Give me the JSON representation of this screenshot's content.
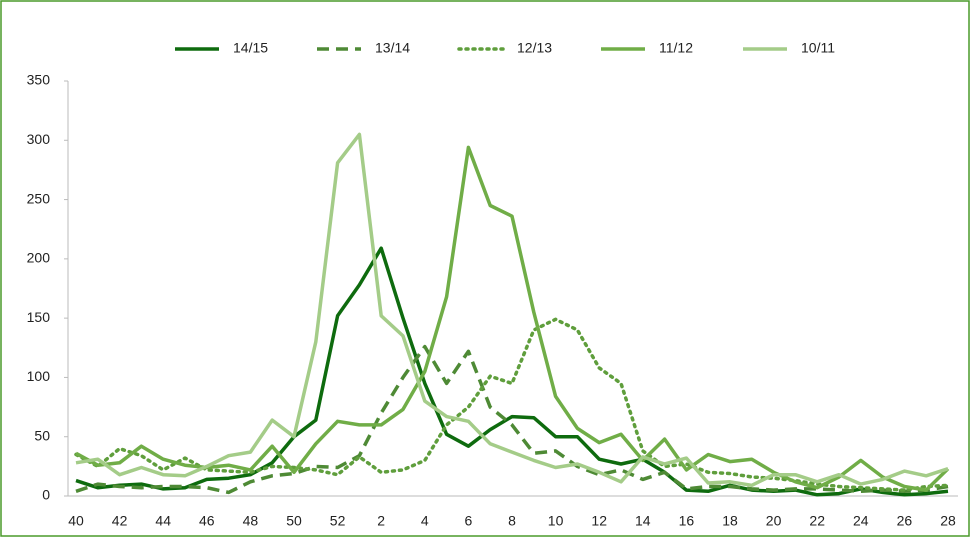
{
  "chart_data": {
    "type": "line",
    "categories": [
      "40",
      null,
      "42",
      null,
      "44",
      null,
      "46",
      null,
      "48",
      null,
      "50",
      null,
      "52",
      null,
      "2",
      null,
      "4",
      null,
      "6",
      null,
      "8",
      null,
      "10",
      null,
      "12",
      null,
      "14",
      null,
      "16",
      null,
      "18",
      null,
      "20",
      null,
      "22",
      null,
      "24",
      null,
      "26",
      null,
      "28"
    ],
    "series": [
      {
        "name": "14/15",
        "color": "#0e6b0e",
        "dash": "solid",
        "values": [
          13,
          7,
          9,
          10,
          6,
          7,
          14,
          15,
          18,
          28,
          50,
          64,
          152,
          178,
          209,
          150,
          95,
          52,
          42,
          56,
          67,
          66,
          50,
          50,
          31,
          27,
          31,
          20,
          5,
          4,
          9,
          5,
          4,
          5,
          1,
          2,
          6,
          3,
          1,
          2,
          4
        ]
      },
      {
        "name": "13/14",
        "color": "#4e8a35",
        "dash": "dashed",
        "values": [
          4,
          10,
          8,
          7,
          8,
          8,
          7,
          3,
          12,
          17,
          19,
          25,
          24,
          34,
          70,
          100,
          126,
          95,
          122,
          75,
          60,
          36,
          38,
          25,
          18,
          22,
          14,
          20,
          6,
          8,
          8,
          6,
          5,
          6,
          6,
          5,
          4,
          5,
          4,
          5,
          8
        ]
      },
      {
        "name": "12/13",
        "color": "#5f9e3c",
        "dash": "dotted",
        "values": [
          35,
          25,
          40,
          34,
          22,
          32,
          22,
          21,
          20,
          25,
          24,
          22,
          18,
          33,
          20,
          22,
          30,
          60,
          75,
          101,
          95,
          140,
          149,
          140,
          108,
          95,
          38,
          25,
          27,
          20,
          19,
          16,
          15,
          13,
          10,
          8,
          7,
          6,
          5,
          8,
          9
        ]
      },
      {
        "name": "11/12",
        "color": "#70ad47",
        "dash": "solid",
        "values": [
          36,
          26,
          28,
          42,
          31,
          26,
          24,
          26,
          22,
          42,
          20,
          44,
          63,
          60,
          60,
          73,
          105,
          168,
          294,
          245,
          236,
          155,
          84,
          57,
          45,
          52,
          30,
          48,
          22,
          35,
          29,
          31,
          20,
          12,
          7,
          16,
          30,
          16,
          8,
          5,
          23
        ]
      },
      {
        "name": "10/11",
        "color": "#a4cc88",
        "dash": "solid",
        "values": [
          28,
          31,
          18,
          24,
          18,
          17,
          25,
          34,
          37,
          64,
          50,
          130,
          281,
          305,
          152,
          135,
          80,
          67,
          63,
          44,
          37,
          30,
          24,
          27,
          20,
          12,
          33,
          27,
          32,
          11,
          12,
          9,
          18,
          18,
          12,
          18,
          10,
          14,
          21,
          17,
          23
        ]
      }
    ],
    "ylim": [
      0,
      350
    ],
    "yticks": [
      0,
      50,
      100,
      150,
      200,
      250,
      300,
      350
    ],
    "grid": false,
    "legend": "top"
  }
}
